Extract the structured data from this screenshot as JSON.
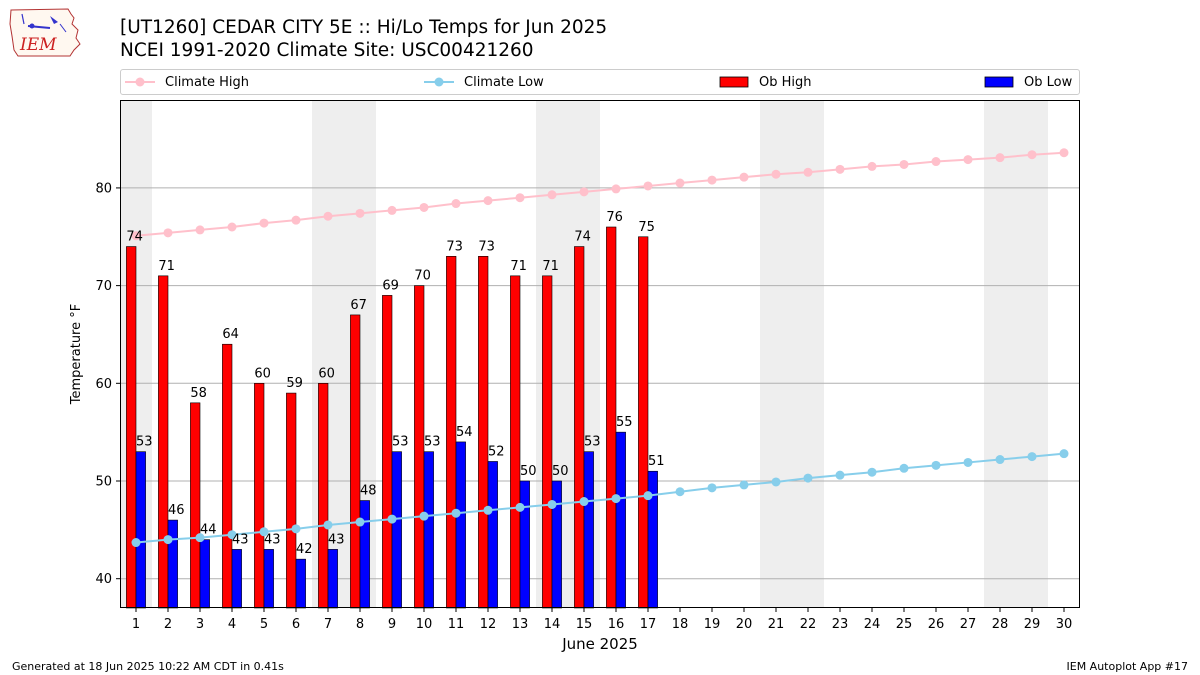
{
  "header": {
    "title_line1": "[UT1260] CEDAR CITY 5E :: Hi/Lo Temps for Jun 2025",
    "title_line2": "NCEI 1991-2020 Climate Site: USC00421260",
    "logo_text": "IEM"
  },
  "footer": {
    "generated": "Generated at 18 Jun 2025 10:22 AM CDT in 0.41s",
    "app": "IEM Autoplot App #17"
  },
  "colors": {
    "climate_high": "#ffc0cb",
    "climate_low": "#87ceeb",
    "ob_high": "#ff0000",
    "ob_low": "#0000ff",
    "weekend_band": "#eeeeee",
    "grid": "#b0b0b0"
  },
  "chart_data": {
    "type": "bar",
    "xlabel": "June 2025",
    "ylabel": "Temperature °F",
    "xlim": [
      0.5,
      30.5
    ],
    "ylim": [
      37,
      89
    ],
    "yticks": [
      40,
      50,
      60,
      70,
      80
    ],
    "grid": "horizontal",
    "legend_placement": "top",
    "legend": [
      "Climate High",
      "Climate Low",
      "Ob High",
      "Ob Low"
    ],
    "days": [
      1,
      2,
      3,
      4,
      5,
      6,
      7,
      8,
      9,
      10,
      11,
      12,
      13,
      14,
      15,
      16,
      17,
      18,
      19,
      20,
      21,
      22,
      23,
      24,
      25,
      26,
      27,
      28,
      29,
      30
    ],
    "weekend_days": [
      1,
      7,
      8,
      14,
      15,
      21,
      22,
      28,
      29
    ],
    "series": [
      {
        "name": "Ob High",
        "kind": "bar",
        "values": [
          74,
          71,
          58,
          64,
          60,
          59,
          60,
          67,
          69,
          70,
          73,
          73,
          71,
          71,
          74,
          76,
          75
        ]
      },
      {
        "name": "Ob Low",
        "kind": "bar",
        "values": [
          53,
          46,
          44,
          43,
          43,
          42,
          43,
          48,
          53,
          53,
          54,
          52,
          50,
          50,
          53,
          55,
          51
        ]
      },
      {
        "name": "Climate High",
        "kind": "line",
        "values": [
          75.1,
          75.4,
          75.7,
          76.0,
          76.4,
          76.7,
          77.1,
          77.4,
          77.7,
          78.0,
          78.4,
          78.7,
          79.0,
          79.3,
          79.6,
          79.9,
          80.2,
          80.5,
          80.8,
          81.1,
          81.4,
          81.6,
          81.9,
          82.2,
          82.4,
          82.7,
          82.9,
          83.1,
          83.4,
          83.6
        ]
      },
      {
        "name": "Climate Low",
        "kind": "line",
        "values": [
          43.7,
          44.0,
          44.2,
          44.5,
          44.8,
          45.1,
          45.5,
          45.8,
          46.1,
          46.4,
          46.7,
          47.0,
          47.3,
          47.6,
          47.9,
          48.2,
          48.5,
          48.9,
          49.3,
          49.6,
          49.9,
          50.3,
          50.6,
          50.9,
          51.3,
          51.6,
          51.9,
          52.2,
          52.5,
          52.8
        ]
      }
    ]
  }
}
